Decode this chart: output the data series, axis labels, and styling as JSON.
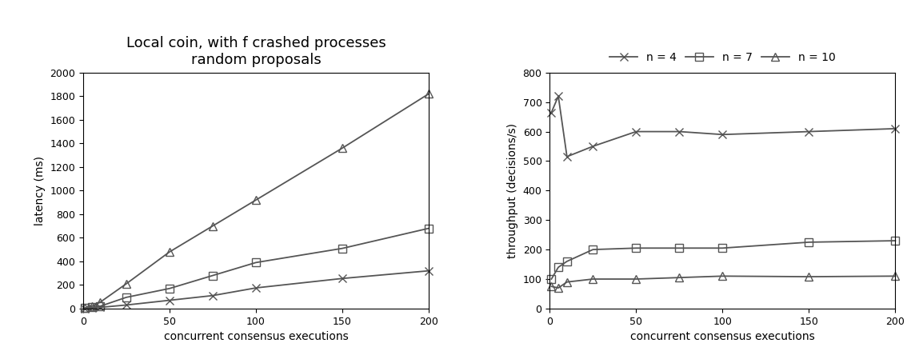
{
  "title_line1": "Local coin, with f crashed processes",
  "title_line2": "random proposals",
  "left_xlabel": "concurrent consensus executions",
  "left_ylabel": "latency (ms)",
  "right_xlabel": "concurrent consensus executions",
  "right_ylabel": "throughput (decisions/s)",
  "x_ticks": [
    0,
    50,
    100,
    150,
    200
  ],
  "left_xlim": [
    0,
    200
  ],
  "right_xlim": [
    0,
    200
  ],
  "left_ylim": [
    0,
    2000
  ],
  "left_yticks": [
    0,
    200,
    400,
    600,
    800,
    1000,
    1200,
    1400,
    1600,
    1800,
    2000
  ],
  "right_ylim": [
    0,
    800
  ],
  "right_yticks": [
    0,
    100,
    200,
    300,
    400,
    500,
    600,
    700,
    800
  ],
  "latency": {
    "n4": {
      "x": [
        1,
        5,
        10,
        25,
        50,
        75,
        100,
        150,
        200
      ],
      "y": [
        2,
        5,
        10,
        30,
        70,
        110,
        175,
        255,
        320
      ]
    },
    "n7": {
      "x": [
        1,
        5,
        10,
        25,
        50,
        75,
        100,
        150,
        200
      ],
      "y": [
        3,
        10,
        20,
        95,
        170,
        280,
        390,
        510,
        680
      ]
    },
    "n10": {
      "x": [
        1,
        5,
        10,
        25,
        50,
        75,
        100,
        150,
        200
      ],
      "y": [
        5,
        20,
        55,
        210,
        480,
        700,
        920,
        1360,
        1820
      ]
    }
  },
  "throughput": {
    "n4": {
      "x": [
        1,
        5,
        10,
        25,
        50,
        75,
        100,
        150,
        200
      ],
      "y": [
        665,
        720,
        515,
        550,
        600,
        600,
        590,
        600,
        610
      ]
    },
    "n7": {
      "x": [
        1,
        5,
        10,
        25,
        50,
        75,
        100,
        150,
        200
      ],
      "y": [
        100,
        140,
        160,
        200,
        205,
        205,
        205,
        225,
        230
      ]
    },
    "n10": {
      "x": [
        1,
        5,
        10,
        25,
        50,
        75,
        100,
        150,
        200
      ],
      "y": [
        75,
        70,
        90,
        100,
        100,
        105,
        110,
        108,
        110
      ]
    }
  },
  "legend_labels": [
    "n = 4",
    "n = 7",
    "n = 10"
  ],
  "line_color": "#555555",
  "bg_color": "#ffffff",
  "title_fontsize": 13,
  "axis_fontsize": 10,
  "tick_fontsize": 9,
  "legend_fontsize": 10,
  "marker_size": 7,
  "line_width": 1.3
}
